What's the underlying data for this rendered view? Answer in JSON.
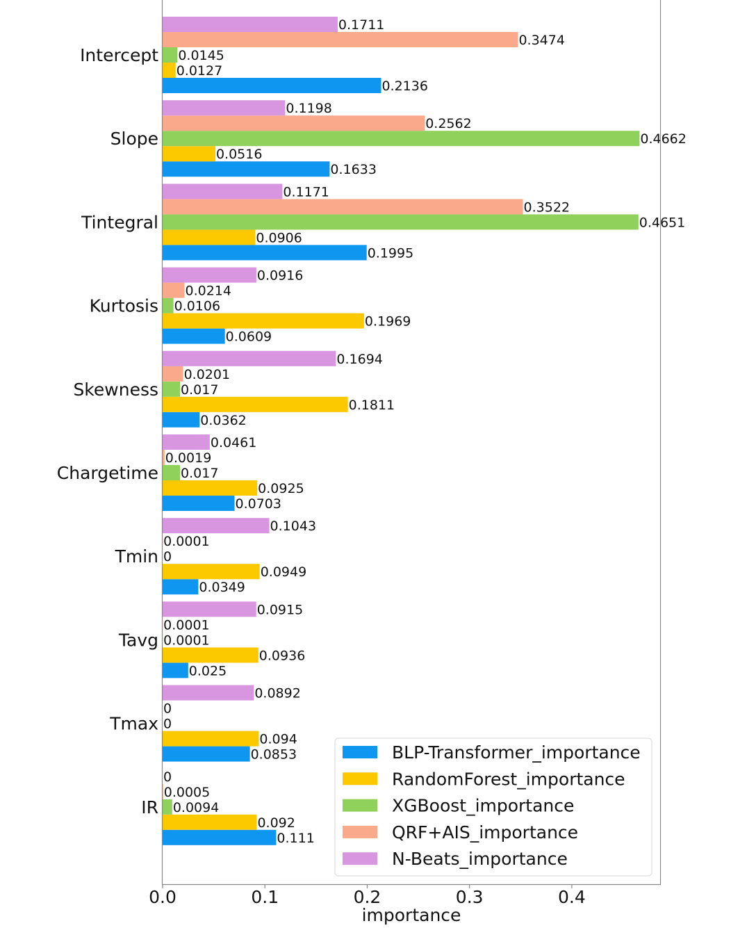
{
  "chart_data": {
    "type": "bar",
    "orientation": "horizontal",
    "title": "",
    "xlabel": "importance",
    "ylabel": "",
    "xlim": [
      0,
      0.487
    ],
    "xticks": [
      {
        "value": 0.0,
        "label": "0.0"
      },
      {
        "value": 0.1,
        "label": "0.1"
      },
      {
        "value": 0.2,
        "label": "0.2"
      },
      {
        "value": 0.3,
        "label": "0.3"
      },
      {
        "value": 0.4,
        "label": "0.4"
      }
    ],
    "categories": [
      "Intercept",
      "Slope",
      "Tintegral",
      "Kurtosis",
      "Skewness",
      "Chargetime",
      "Tmin",
      "Tavg",
      "Tmax",
      "IR"
    ],
    "legend_position": "lower-right",
    "series": [
      {
        "name": "BLP-Transformer_importance",
        "color": "#0f96f0",
        "values": [
          0.2136,
          0.1633,
          0.1995,
          0.0609,
          0.0362,
          0.0703,
          0.0349,
          0.025,
          0.0853,
          0.111
        ],
        "labels": [
          "0.2136",
          "0.1633",
          "0.1995",
          "0.0609",
          "0.0362",
          "0.0703",
          "0.0349",
          "0.025",
          "0.0853",
          "0.111"
        ]
      },
      {
        "name": "RandomForest_importance",
        "color": "#fcc800",
        "values": [
          0.0127,
          0.0516,
          0.0906,
          0.1969,
          0.1811,
          0.0925,
          0.0949,
          0.0936,
          0.094,
          0.092
        ],
        "labels": [
          "0.0127",
          "0.0516",
          "0.0906",
          "0.1969",
          "0.1811",
          "0.0925",
          "0.0949",
          "0.0936",
          "0.094",
          "0.092"
        ]
      },
      {
        "name": "XGBoost_importance",
        "color": "#8fd15b",
        "values": [
          0.0145,
          0.4662,
          0.4651,
          0.0106,
          0.017,
          0.017,
          0,
          0.0001,
          0,
          0.0094
        ],
        "labels": [
          "0.0145",
          "0.4662",
          "0.4651",
          "0.0106",
          "0.017",
          "0.017",
          "0",
          "0.0001",
          "0",
          "0.0094"
        ]
      },
      {
        "name": "QRF+AIS_importance",
        "color": "#faa98b",
        "values": [
          0.3474,
          0.2562,
          0.3522,
          0.0214,
          0.0201,
          0.0019,
          0.0001,
          0.0001,
          0,
          0.0005
        ],
        "labels": [
          "0.3474",
          "0.2562",
          "0.3522",
          "0.0214",
          "0.0201",
          "0.0019",
          "0.0001",
          "0.0001",
          "0",
          "0.0005"
        ]
      },
      {
        "name": "N-Beats_importance",
        "color": "#d895e0",
        "values": [
          0.1711,
          0.1198,
          0.1171,
          0.0916,
          0.1694,
          0.0461,
          0.1043,
          0.0915,
          0.0892,
          0
        ],
        "labels": [
          "0.1711",
          "0.1198",
          "0.1171",
          "0.0916",
          "0.1694",
          "0.0461",
          "0.1043",
          "0.0915",
          "0.0892",
          "0"
        ]
      }
    ]
  }
}
